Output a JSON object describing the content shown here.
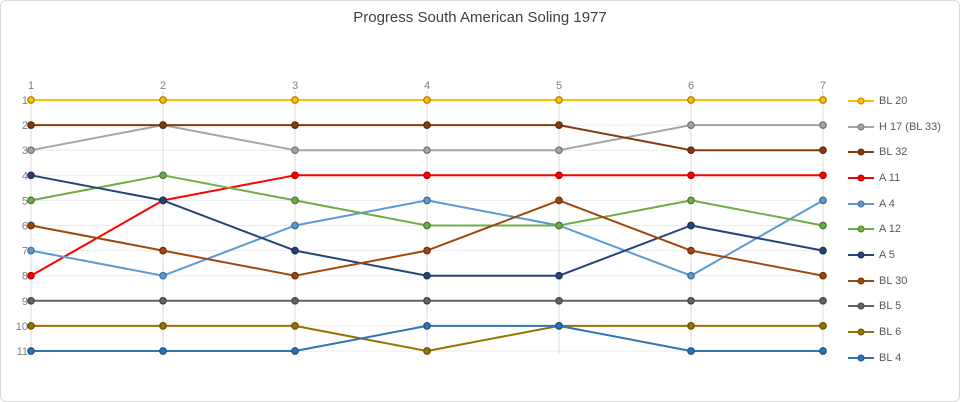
{
  "chart_data": {
    "type": "line",
    "subtype": "bump",
    "title": "Progress South American Soling 1977",
    "x": [
      "1",
      "2",
      "3",
      "4",
      "5",
      "6",
      "7"
    ],
    "xlabel": "",
    "ylabel": "",
    "y_ticks": [
      "1",
      "2",
      "3",
      "4",
      "5",
      "6",
      "7",
      "8",
      "9",
      "10",
      "11"
    ],
    "ylim": [
      1,
      11
    ],
    "y_inverted": true,
    "grid": true,
    "legend_position": "right",
    "series": [
      {
        "name": "BL 20",
        "color": "#FFC000",
        "values": [
          1,
          1,
          1,
          1,
          1,
          1,
          1
        ]
      },
      {
        "name": "H 17 (BL 33)",
        "color": "#A5A5A5",
        "values": [
          3,
          2,
          3,
          3,
          3,
          2,
          2
        ]
      },
      {
        "name": "BL 32",
        "color": "#843C0C",
        "values": [
          2,
          2,
          2,
          2,
          2,
          3,
          3
        ]
      },
      {
        "name": "A 11",
        "color": "#FF0000",
        "values": [
          8,
          5,
          4,
          4,
          4,
          4,
          4
        ]
      },
      {
        "name": "A 4",
        "color": "#5B9BD5",
        "values": [
          7,
          8,
          6,
          5,
          6,
          8,
          5
        ]
      },
      {
        "name": "A 12",
        "color": "#70AD47",
        "values": [
          5,
          4,
          5,
          6,
          6,
          5,
          6
        ]
      },
      {
        "name": "A 5",
        "color": "#264478",
        "values": [
          4,
          5,
          7,
          8,
          8,
          6,
          7
        ]
      },
      {
        "name": "BL 30",
        "color": "#9E480E",
        "values": [
          6,
          7,
          8,
          7,
          5,
          7,
          8
        ]
      },
      {
        "name": "BL 5",
        "color": "#636363",
        "values": [
          9,
          9,
          9,
          9,
          9,
          9,
          9
        ]
      },
      {
        "name": "BL 6",
        "color": "#997300",
        "values": [
          10,
          10,
          10,
          11,
          10,
          10,
          10
        ]
      },
      {
        "name": "BL 4",
        "color": "#2E75B6",
        "values": [
          11,
          11,
          11,
          10,
          10,
          11,
          11
        ]
      }
    ]
  },
  "colors": {
    "card_border": "#D9D9D9",
    "background": "#FFFFFF",
    "title_text": "#404040",
    "axis_text": "#7F7F7F",
    "legend_text": "#595959",
    "grid_vertical": "#D9D9D9",
    "grid_horizontal": "#EBEBEB"
  }
}
